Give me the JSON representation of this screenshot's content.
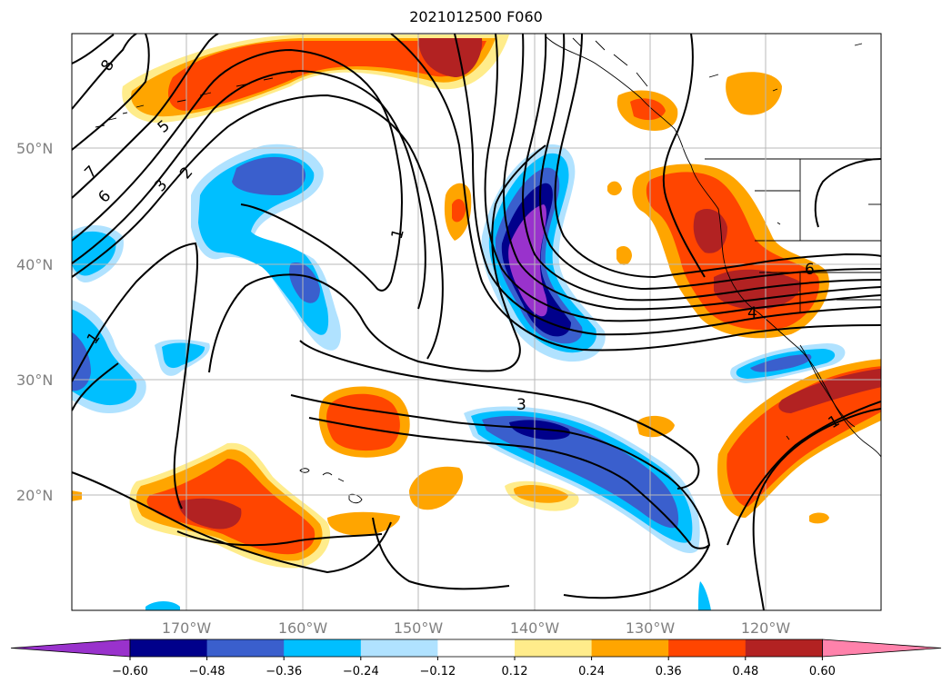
{
  "title": "2021012500 F060",
  "lat_labels": [
    "50°N",
    "40°N",
    "30°N",
    "20°N"
  ],
  "lon_labels": [
    "170°W",
    "160°W",
    "150°W",
    "140°W",
    "130°W",
    "120°W"
  ],
  "colorbar": {
    "colors": [
      "#9932cc",
      "#00008b",
      "#3a5fcd",
      "#00bfff",
      "#b0e2ff",
      "#ffffff",
      "#ffec8b",
      "#ffa500",
      "#ff4500",
      "#b22222",
      "#ff82ab"
    ],
    "tick_labels": [
      "−0.60",
      "−0.48",
      "−0.36",
      "−0.24",
      "−0.12",
      "0.12",
      "0.24",
      "0.36",
      "0.48",
      "0.60"
    ]
  },
  "contour_labels": [
    "8",
    "7",
    "6",
    "5",
    "3",
    "2",
    "1",
    "1",
    "3",
    "6",
    "4",
    "1"
  ]
}
